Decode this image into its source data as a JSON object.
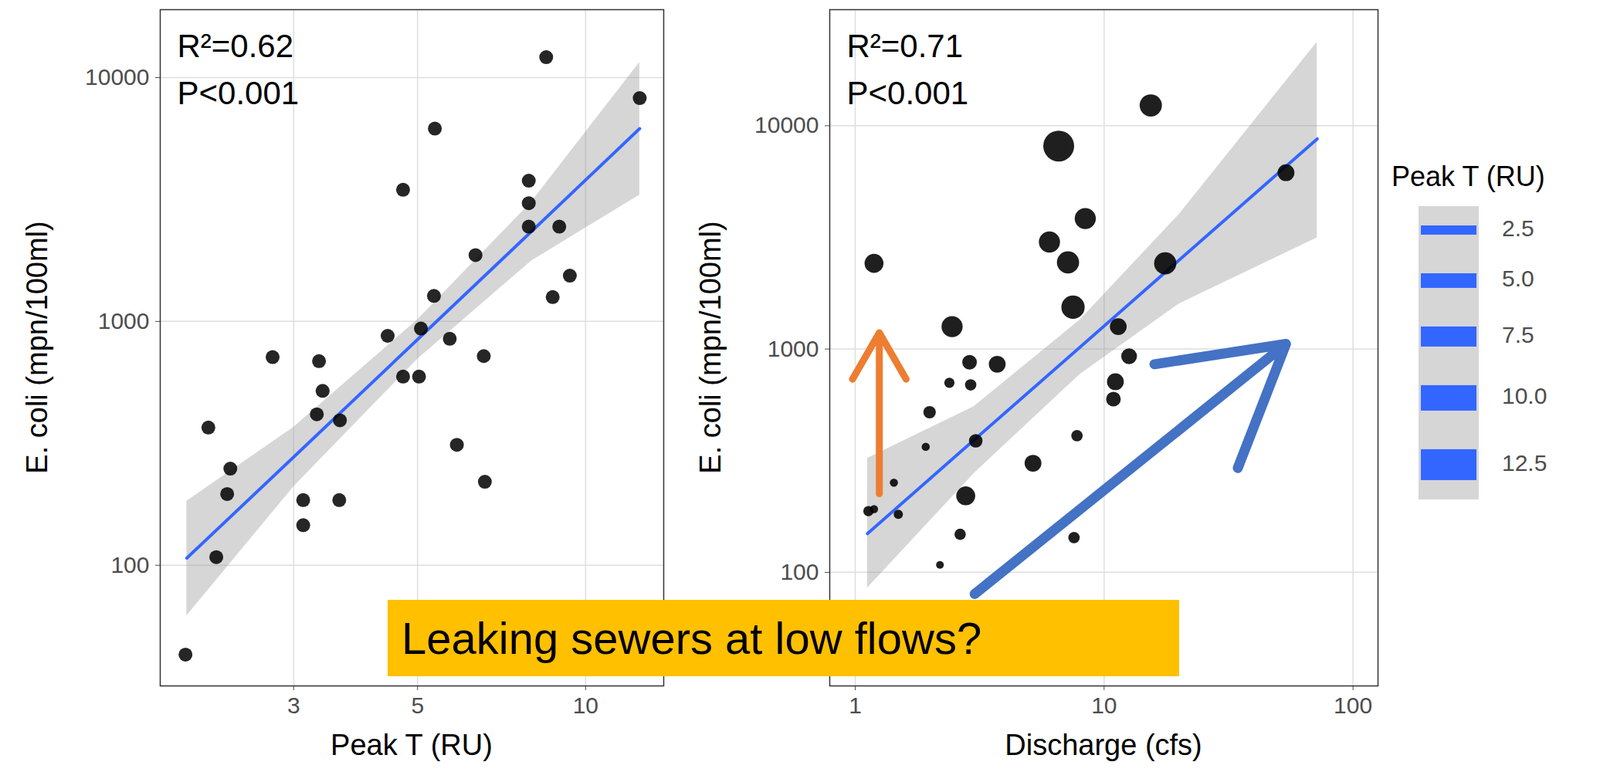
{
  "chart_data": [
    {
      "type": "scatter",
      "x_label": "Peak T (RU)",
      "y_label": "E. coli (mpn/100ml)",
      "log": true,
      "grid": true,
      "xlim": [
        1.73,
        13.8
      ],
      "ylim": [
        32,
        19000
      ],
      "xticks": [
        3,
        5,
        10
      ],
      "yticks": [
        100,
        1000,
        10000
      ],
      "annotations": [
        "R²=0.62",
        "P<0.001"
      ],
      "marker": "circle",
      "color": "#000000",
      "x": [
        1.92,
        2.11,
        2.31,
        2.28,
        2.18,
        2.75,
        3.12,
        3.12,
        3.33,
        3.38,
        3.3,
        3.63,
        3.62,
        4.42,
        4.71,
        4.71,
        5.03,
        5.07,
        5.35,
        5.37,
        5.71,
        5.88,
        6.35,
        6.57,
        6.6,
        7.91,
        7.91,
        7.91,
        8.5,
        8.97,
        8.73,
        9.37,
        12.5
      ],
      "values": [
        43,
        367,
        249,
        196,
        108,
        714,
        185,
        146,
        687,
        519,
        416,
        393,
        185,
        873,
        3467,
        594,
        594,
        935,
        1273,
        6180,
        849,
        312,
        1871,
        721,
        220,
        3779,
        3055,
        2449,
        12130,
        2449,
        1259,
        1541,
        8244
      ],
      "fit": {
        "color": "#3366ff",
        "x": [
          1.93,
          3,
          5,
          8,
          12.5
        ],
        "values": [
          107,
          278,
          843,
          2339,
          6180
        ],
        "lower": [
          62,
          210,
          700,
          1770,
          3300
        ],
        "upper": [
          183,
          368,
          1015,
          3090,
          11550
        ]
      }
    },
    {
      "type": "scatter",
      "x_label": "Discharge (cfs)",
      "y_label": "E. coli (mpn/100ml)",
      "log": true,
      "grid": true,
      "legend": "right",
      "xlim": [
        0.79,
        126
      ],
      "ylim": [
        31,
        33100
      ],
      "xticks": [
        1,
        10,
        100
      ],
      "yticks": [
        100,
        1000,
        10000
      ],
      "annotations": [
        "R²=0.71",
        "P<0.001"
      ],
      "marker": "circle",
      "color": "#000000",
      "x": [
        1.19,
        1.13,
        1.19,
        1.43,
        1.49,
        1.92,
        1.99,
        2.19,
        2.39,
        2.45,
        2.64,
        2.78,
        2.91,
        2.88,
        3.05,
        3.72,
        5.18,
        6.03,
        6.57,
        7.16,
        7.5,
        8.4,
        7.78,
        7.57,
        11.1,
        10.9,
        11.4,
        15.4,
        12.6,
        17.6,
        53.8
      ],
      "values": [
        2420,
        188,
        192,
        252,
        182,
        365,
        521,
        108,
        706,
        1260,
        148,
        220,
        691,
        872,
        388,
        855,
        308,
        3015,
        8110,
        2445,
        1540,
        3840,
        409,
        143,
        714,
        597,
        1260,
        12330,
        928,
        2420,
        6160
      ],
      "sizes": [
        7,
        3,
        2,
        2,
        2.5,
        2,
        4,
        1.8,
        3,
        8,
        3.5,
        7,
        3.5,
        5,
        4.5,
        6,
        6,
        8,
        12.5,
        8.5,
        9,
        8,
        3.5,
        3.5,
        6,
        5,
        6,
        8.5,
        5.5,
        8.5,
        6
      ],
      "size_label": "Peak T (RU)",
      "size_ticks": [
        2.5,
        {
          "value": 5,
          "label": "5.0"
        },
        7.5,
        {
          "value": 10,
          "label": "10.0"
        },
        12.5
      ],
      "fit": {
        "color": "#3366ff",
        "x": [
          1.12,
          3,
          8,
          20,
          71.8
        ],
        "values": [
          149,
          391,
          1019,
          2500,
          8730
        ],
        "lower": [
          85,
          277,
          770,
          1590,
          3150
        ],
        "upper": [
          324,
          552,
          1350,
          4000,
          23700
        ]
      },
      "arrows": [
        {
          "x1": 1.25,
          "y1": 225,
          "x2": 1.25,
          "y2": 1183,
          "color": "#ed7d31"
        },
        {
          "x1": 3.02,
          "y1": 80,
          "x2": 53.8,
          "y2": 1054,
          "color": "#4472c4"
        }
      ]
    }
  ],
  "annotation": "Leaking sewers at low flows?"
}
